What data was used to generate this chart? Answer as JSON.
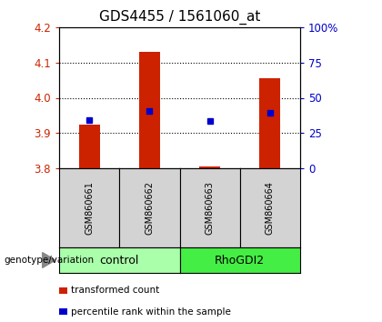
{
  "title": "GDS4455 / 1561060_at",
  "samples": [
    "GSM860661",
    "GSM860662",
    "GSM860663",
    "GSM860664"
  ],
  "red_values": [
    3.925,
    4.13,
    3.805,
    4.055
  ],
  "blue_values": [
    3.9375,
    3.963,
    3.935,
    3.958
  ],
  "ymin": 3.8,
  "ymax": 4.2,
  "yticks_left": [
    3.8,
    3.9,
    4.0,
    4.1,
    4.2
  ],
  "yticks_right": [
    0,
    25,
    50,
    75,
    100
  ],
  "groups": [
    {
      "label": "control",
      "samples": [
        0,
        1
      ],
      "color": "#aaffaa"
    },
    {
      "label": "RhoGDI2",
      "samples": [
        2,
        3
      ],
      "color": "#44ee44"
    }
  ],
  "group_label": "genotype/variation",
  "bar_color": "#cc2200",
  "dot_color": "#0000cc",
  "bar_width": 0.35,
  "bg_color": "#d3d3d3",
  "legend_items": [
    {
      "color": "#cc2200",
      "label": "transformed count"
    },
    {
      "color": "#0000cc",
      "label": "percentile rank within the sample"
    }
  ],
  "title_fontsize": 11,
  "tick_fontsize": 8.5,
  "sample_fontsize": 7,
  "group_fontsize": 9,
  "legend_fontsize": 7.5
}
